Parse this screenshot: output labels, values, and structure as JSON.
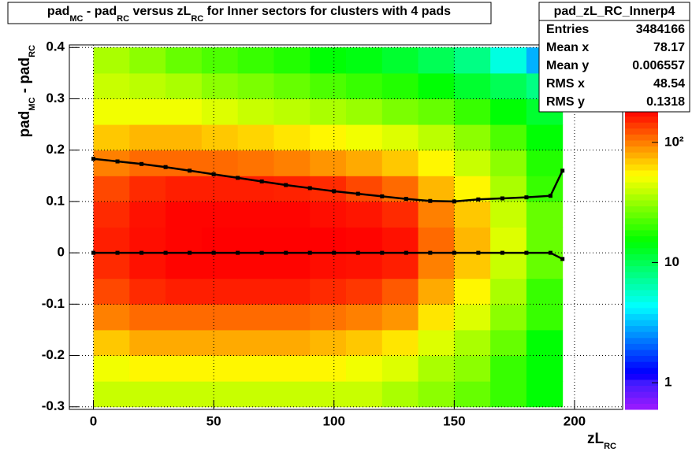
{
  "chart_data": {
    "type": "heatmap",
    "title_parts": [
      "pad",
      "MC",
      " - pad",
      "RC",
      " versus zL",
      "RC",
      " for Inner sectors for clusters with 4 pads"
    ],
    "x_label_parts": [
      "zL",
      "RC"
    ],
    "y_label_parts": [
      "pad",
      "MC",
      " - pad",
      "RC"
    ],
    "xlim": [
      -10,
      220
    ],
    "ylim": [
      -0.305,
      0.405
    ],
    "xticks": [
      0,
      50,
      100,
      150,
      200
    ],
    "yticks": [
      -0.3,
      -0.2,
      -0.1,
      0,
      0.1,
      0.2,
      0.3,
      0.4
    ],
    "grid": true,
    "z_log": true,
    "zlim": [
      0.6,
      185
    ],
    "zticks": [
      1,
      10,
      {
        "value": 100,
        "label": "10²"
      }
    ],
    "xbins": [
      0,
      15,
      30,
      45,
      60,
      75,
      90,
      105,
      120,
      135,
      150,
      165,
      180,
      195
    ],
    "ybins": [
      -0.3,
      -0.25,
      -0.2,
      -0.15,
      -0.1,
      -0.05,
      0,
      0.05,
      0.1,
      0.15,
      0.2,
      0.25,
      0.3,
      0.35,
      0.4
    ],
    "z": [
      [
        40,
        40,
        40,
        40,
        40,
        40,
        40,
        40,
        35,
        30,
        25,
        20,
        15
      ],
      [
        50,
        55,
        55,
        55,
        55,
        55,
        55,
        50,
        45,
        35,
        30,
        20,
        15
      ],
      [
        70,
        80,
        80,
        80,
        80,
        80,
        75,
        70,
        60,
        45,
        35,
        25,
        15
      ],
      [
        100,
        110,
        110,
        110,
        110,
        110,
        105,
        100,
        90,
        60,
        45,
        30,
        20
      ],
      [
        130,
        150,
        160,
        160,
        160,
        160,
        150,
        140,
        120,
        80,
        55,
        35,
        20
      ],
      [
        150,
        170,
        180,
        180,
        180,
        180,
        175,
        170,
        160,
        100,
        70,
        40,
        25
      ],
      [
        160,
        175,
        180,
        185,
        185,
        185,
        185,
        180,
        170,
        110,
        75,
        45,
        25
      ],
      [
        150,
        170,
        180,
        180,
        180,
        180,
        175,
        165,
        150,
        100,
        70,
        40,
        25
      ],
      [
        130,
        150,
        160,
        160,
        160,
        155,
        150,
        130,
        110,
        75,
        55,
        35,
        20
      ],
      [
        100,
        110,
        110,
        110,
        105,
        100,
        90,
        80,
        70,
        55,
        40,
        30,
        18
      ],
      [
        70,
        75,
        75,
        70,
        65,
        60,
        55,
        50,
        45,
        38,
        30,
        22,
        15
      ],
      [
        50,
        50,
        50,
        45,
        40,
        38,
        35,
        32,
        28,
        25,
        20,
        15,
        12
      ],
      [
        40,
        38,
        35,
        30,
        28,
        25,
        22,
        20,
        18,
        15,
        12,
        10,
        8
      ],
      [
        35,
        30,
        25,
        22,
        20,
        18,
        15,
        14,
        12,
        10,
        8,
        5,
        3
      ]
    ],
    "profiles": {
      "x": [
        0,
        10,
        20,
        30,
        40,
        50,
        60,
        70,
        80,
        90,
        100,
        110,
        120,
        130,
        140,
        150,
        160,
        170,
        180,
        190,
        195
      ],
      "series": [
        {
          "color": "#000000",
          "values": [
            0,
            0,
            0,
            0,
            0,
            0,
            0,
            0,
            0,
            0,
            0,
            0,
            0,
            0,
            0,
            0,
            0,
            0,
            0,
            0,
            -0.012
          ]
        },
        {
          "color": "#000000",
          "values": [
            0.183,
            0.178,
            0.173,
            0.167,
            0.16,
            0.153,
            0.146,
            0.139,
            0.132,
            0.126,
            0.12,
            0.115,
            0.11,
            0.105,
            0.101,
            0.1,
            0.104,
            0.106,
            0.108,
            0.111,
            0.16
          ]
        }
      ]
    },
    "stats": {
      "title": "pad_zL_RC_Innerp4",
      "rows": [
        [
          "Entries",
          "3484166"
        ],
        [
          "Mean x",
          "78.17"
        ],
        [
          "Mean y",
          "0.006557"
        ],
        [
          "RMS x",
          "48.54"
        ],
        [
          "RMS y",
          "0.1318"
        ]
      ]
    }
  }
}
